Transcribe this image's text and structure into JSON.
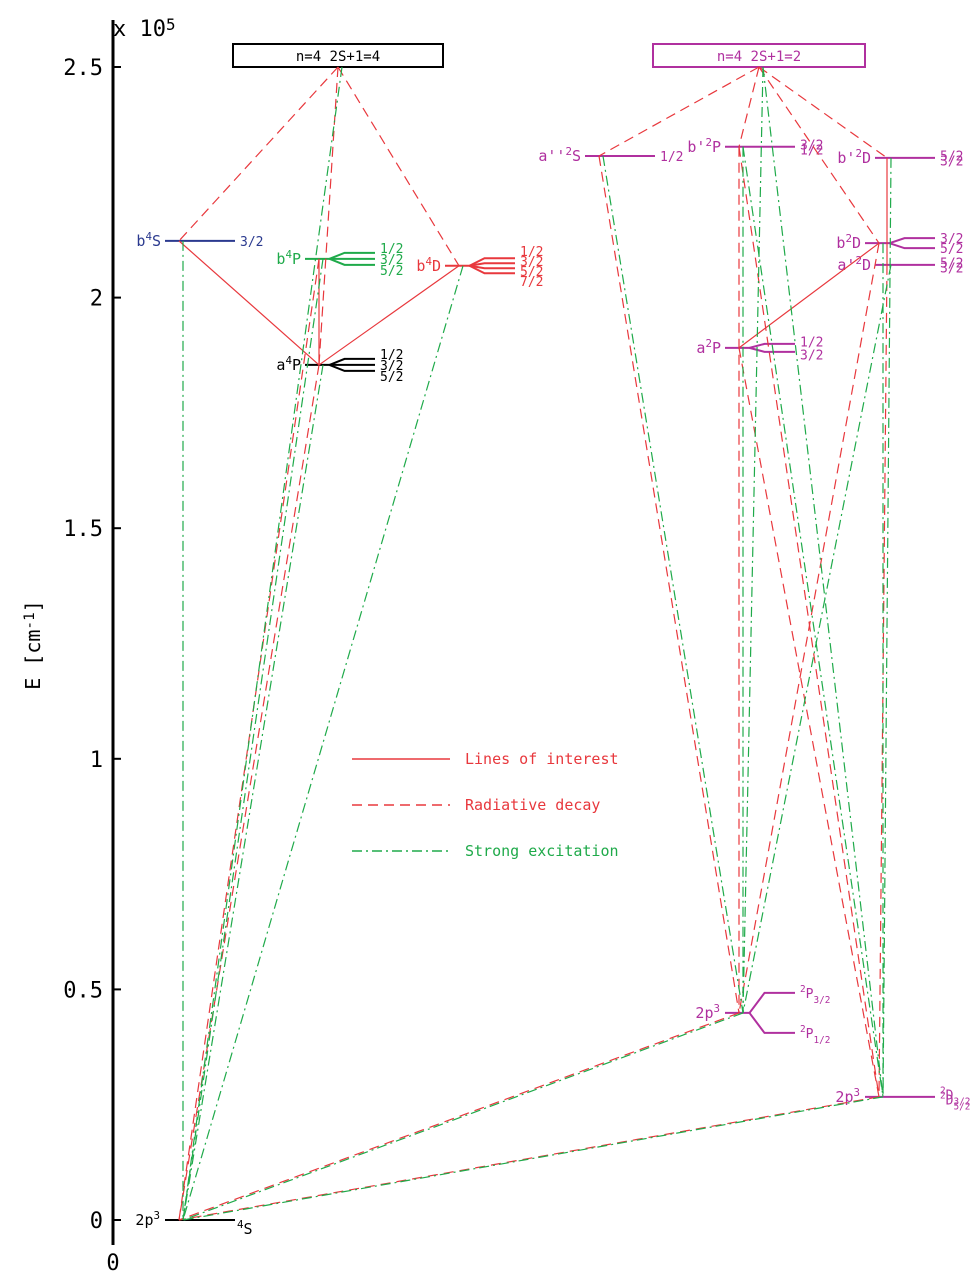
{
  "axis": {
    "multiplier": [
      "x 10",
      "5"
    ],
    "label": [
      "E [cm",
      "-1",
      "]"
    ],
    "ylim": [
      0,
      2.5
    ],
    "ticks": [
      0,
      0.5,
      1,
      1.5,
      2,
      2.5
    ],
    "origin": 0
  },
  "groups": [
    {
      "title": "n=4  2S+1=4",
      "color": "#000000"
    },
    {
      "title": "n=4  2S+1=2",
      "color": "#b0309f"
    }
  ],
  "levels": [
    {
      "config": [
        "2p",
        "3"
      ],
      "term": {
        "mult": "4",
        "L": "S"
      },
      "energy": 0,
      "color": "#000000"
    },
    {
      "term": {
        "pre": "b",
        "mult": "4",
        "L": "S"
      },
      "energy": 2.123,
      "color": "#2b3a8f",
      "J": [
        "3/2"
      ]
    },
    {
      "term": {
        "pre": "b",
        "mult": "4",
        "L": "P"
      },
      "energy": 2.084,
      "color": "#1faa4a",
      "J": [
        "1/2",
        "3/2",
        "5/2"
      ]
    },
    {
      "term": {
        "pre": "a",
        "mult": "4",
        "L": "P"
      },
      "energy": 1.854,
      "color": "#000000",
      "J": [
        "1/2",
        "3/2",
        "5/2"
      ]
    },
    {
      "term": {
        "pre": "b",
        "mult": "4",
        "L": "D"
      },
      "energy": 2.069,
      "color": "#e8383d",
      "J": [
        "1/2",
        "3/2",
        "5/2",
        "7/2"
      ]
    },
    {
      "term": {
        "pre": "a''",
        "mult": "2",
        "L": "S"
      },
      "energy": 2.307,
      "color": "#b0309f",
      "J": [
        "1/2"
      ]
    },
    {
      "term": {
        "pre": "b'",
        "mult": "2",
        "L": "P"
      },
      "energy": 2.327,
      "color": "#b0309f",
      "J": [
        "3/2",
        "1/2"
      ]
    },
    {
      "term": {
        "pre": "b'",
        "mult": "2",
        "L": "D"
      },
      "energy": 2.303,
      "color": "#b0309f",
      "J": [
        "5/2",
        "3/2"
      ]
    },
    {
      "term": {
        "pre": "b",
        "mult": "2",
        "L": "D"
      },
      "energy": 2.118,
      "color": "#b0309f",
      "J": [
        "3/2",
        "5/2"
      ]
    },
    {
      "term": {
        "pre": "a'",
        "mult": "2",
        "L": "D"
      },
      "energy": 2.071,
      "color": "#b0309f",
      "J": [
        "5/2",
        "3/2"
      ]
    },
    {
      "term": {
        "pre": "a",
        "mult": "2",
        "L": "P"
      },
      "energy": 1.891,
      "color": "#b0309f",
      "J": [
        "1/2",
        "3/2"
      ]
    },
    {
      "config": [
        "2p",
        "3"
      ],
      "energy": 0.449,
      "color": "#b0309f",
      "J": [
        {
          "mult": "2",
          "L": "P",
          "J": "3/2"
        },
        {
          "mult": "2",
          "L": "P",
          "J": "1/2"
        }
      ]
    },
    {
      "config": [
        "2p",
        "3"
      ],
      "energy": 0.267,
      "color": "#b0309f",
      "J": [
        {
          "mult": "2",
          "L": "D",
          "J": "3/2"
        },
        {
          "mult": "2",
          "L": "D",
          "J": "5/2"
        }
      ]
    }
  ],
  "legend": [
    {
      "label": "Lines of interest",
      "color": "#e8383d",
      "style": "solid"
    },
    {
      "label": "Radiative decay",
      "color": "#e8383d",
      "style": "dashed"
    },
    {
      "label": "Strong excitation",
      "color": "#1faa4a",
      "style": "dash-dot"
    }
  ]
}
